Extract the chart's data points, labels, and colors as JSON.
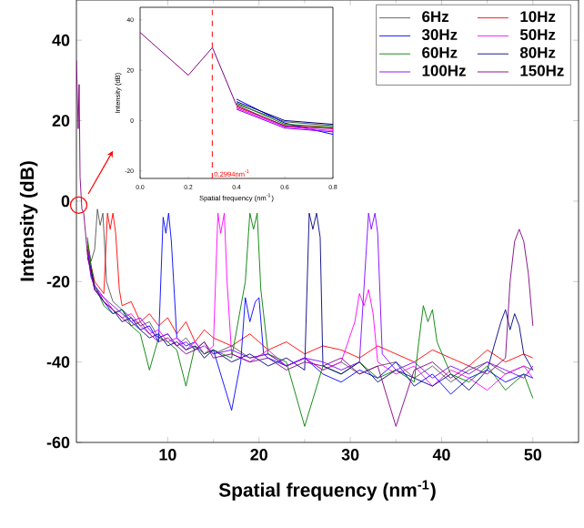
{
  "chart_data": [
    {
      "type": "line",
      "xlabel": "Spatial frequency (nm$^{-1}$)",
      "ylabel": "Intensity (dB)",
      "xlim": [
        0,
        55
      ],
      "ylim": [
        -60,
        50
      ],
      "xticks": [
        10,
        20,
        30,
        40,
        50
      ],
      "yticks": [
        -60,
        -40,
        -20,
        0,
        20,
        40
      ],
      "legend": "top right",
      "series": [
        {
          "name": "6Hz",
          "color": "#555555",
          "x": [
            1.2,
            1.6,
            2,
            2.3,
            2.6,
            2.9,
            3.3,
            4,
            5,
            6,
            7,
            8,
            9,
            10,
            11,
            12,
            13,
            14,
            15,
            17,
            19,
            21,
            23,
            25,
            27,
            29,
            31,
            33,
            35,
            37,
            39,
            41,
            43,
            45,
            47,
            49,
            50
          ],
          "values": [
            -10,
            -15,
            -12,
            -2,
            -6,
            -3,
            -20,
            -25,
            -27,
            -29,
            -31,
            -30,
            -34,
            -33,
            -36,
            -34,
            -37,
            -35,
            -38,
            -36,
            -39,
            -38,
            -41,
            -39,
            -42,
            -40,
            -43,
            -41,
            -40,
            -44,
            -41,
            -45,
            -42,
            -40,
            -43,
            -41,
            -42
          ]
        },
        {
          "name": "10Hz",
          "color": "#ff0000",
          "x": [
            1.2,
            1.6,
            2,
            3,
            3.4,
            3.7,
            4.0,
            4.3,
            4.7,
            5,
            6,
            7,
            8,
            9,
            10,
            11,
            12,
            13,
            14,
            15,
            17,
            19,
            21,
            23,
            25,
            27,
            29,
            31,
            33,
            35,
            37,
            39,
            41,
            43,
            45,
            47,
            49,
            50
          ],
          "values": [
            -11,
            -16,
            -20,
            -23,
            -3,
            -7,
            -3,
            -8,
            -22,
            -26,
            -25,
            -30,
            -28,
            -31,
            -29,
            -33,
            -30,
            -35,
            -32,
            -34,
            -36,
            -33,
            -37,
            -35,
            -38,
            -36,
            -37,
            -39,
            -36,
            -38,
            -40,
            -37,
            -39,
            -41,
            -37,
            -40,
            -38,
            -39
          ]
        },
        {
          "name": "30Hz",
          "color": "#0000ff",
          "x": [
            1.2,
            1.6,
            2,
            3,
            4,
            5,
            6,
            7,
            8,
            9,
            9.5,
            9.8,
            10.1,
            10.4,
            11,
            12,
            13,
            14,
            15,
            17,
            18,
            18.5,
            19,
            19.6,
            20,
            20.5,
            21,
            23,
            25,
            27,
            29,
            31,
            33,
            35,
            37,
            39,
            41,
            43,
            45,
            47,
            49,
            50
          ],
          "values": [
            -12,
            -17,
            -21,
            -25,
            -28,
            -27,
            -30,
            -32,
            -31,
            -35,
            -4,
            -8,
            -3,
            -10,
            -34,
            -36,
            -35,
            -38,
            -37,
            -52,
            -40,
            -24,
            -30,
            -25,
            -24,
            -38,
            -39,
            -41,
            -39,
            -43,
            -45,
            -42,
            -44,
            -40,
            -46,
            -43,
            -48,
            -44,
            -42,
            -45,
            -43,
            -44
          ]
        },
        {
          "name": "50Hz",
          "color": "#ff00ff",
          "x": [
            1.2,
            1.6,
            2,
            3,
            4,
            5,
            6,
            7,
            8,
            9,
            10,
            11,
            12,
            13,
            14,
            15,
            15.5,
            15.8,
            16.2,
            16.5,
            17,
            19,
            21,
            23,
            25,
            27,
            29,
            30.5,
            31,
            31.5,
            32,
            32.5,
            33,
            35,
            37,
            39,
            41,
            43,
            45,
            47,
            49,
            50
          ],
          "values": [
            -13,
            -18,
            -22,
            -24,
            -27,
            -29,
            -28,
            -31,
            -33,
            -32,
            -35,
            -34,
            -37,
            -35,
            -38,
            -36,
            -3,
            -8,
            -3,
            -20,
            -38,
            -40,
            -37,
            -41,
            -39,
            -42,
            -40,
            -30,
            -23,
            -26,
            -22,
            -28,
            -40,
            -43,
            -41,
            -46,
            -42,
            -44,
            -47,
            -43,
            -41,
            -44
          ]
        },
        {
          "name": "60Hz",
          "color": "#008000",
          "x": [
            1.2,
            1.6,
            2,
            3,
            4,
            5,
            6,
            7,
            8,
            9,
            10,
            11,
            12,
            13,
            14,
            15,
            17,
            18.5,
            19,
            19.4,
            19.8,
            20.2,
            21,
            23,
            25,
            27,
            29,
            31,
            33,
            35,
            37,
            37.5,
            38,
            38.5,
            39,
            39.5,
            41,
            43,
            45,
            47,
            49,
            50
          ],
          "values": [
            -9,
            -16,
            -21,
            -26,
            -28,
            -27,
            -31,
            -33,
            -42,
            -34,
            -35,
            -37,
            -46,
            -36,
            -38,
            -37,
            -39,
            -20,
            -3,
            -7,
            -3,
            -22,
            -38,
            -40,
            -56,
            -41,
            -43,
            -40,
            -44,
            -42,
            -45,
            -35,
            -26,
            -30,
            -27,
            -35,
            -43,
            -45,
            -41,
            -47,
            -43,
            -49
          ]
        },
        {
          "name": "80Hz",
          "color": "#000080",
          "x": [
            1.2,
            1.6,
            2,
            3,
            4,
            5,
            6,
            7,
            8,
            9,
            10,
            11,
            12,
            13,
            14,
            15,
            17,
            19,
            21,
            23,
            25,
            25.5,
            25.9,
            26.3,
            26.7,
            27,
            29,
            31,
            33,
            35,
            37,
            39,
            41,
            43,
            45,
            46.5,
            47,
            47.5,
            48,
            48.5,
            49,
            50
          ],
          "values": [
            -14,
            -17,
            -22,
            -25,
            -27,
            -30,
            -29,
            -32,
            -34,
            -33,
            -36,
            -35,
            -37,
            -36,
            -39,
            -37,
            -40,
            -38,
            -41,
            -39,
            -42,
            -3,
            -7,
            -3,
            -9,
            -41,
            -43,
            -40,
            -45,
            -42,
            -44,
            -46,
            -43,
            -47,
            -42,
            -30,
            -27,
            -32,
            -28,
            -31,
            -38,
            -42
          ]
        },
        {
          "name": "100Hz",
          "color": "#8000ff",
          "x": [
            1.2,
            1.6,
            2,
            3,
            4,
            5,
            6,
            7,
            8,
            9,
            10,
            11,
            12,
            13,
            14,
            15,
            17,
            19,
            21,
            23,
            25,
            27,
            29,
            31,
            32,
            32.3,
            32.7,
            33,
            33.5,
            35,
            37,
            39,
            41,
            43,
            45,
            47,
            49,
            50
          ],
          "values": [
            -12,
            -19,
            -21,
            -24,
            -26,
            -28,
            -30,
            -29,
            -32,
            -34,
            -33,
            -36,
            -35,
            -37,
            -36,
            -38,
            -37,
            -39,
            -38,
            -41,
            -39,
            -40,
            -42,
            -40,
            -3,
            -7,
            -3,
            -8,
            -38,
            -42,
            -40,
            -44,
            -41,
            -43,
            -40,
            -42,
            -44,
            -41
          ]
        },
        {
          "name": "150Hz",
          "color": "#800080",
          "x": [
            0,
            0.2,
            0.3,
            0.4,
            0.6,
            0.8,
            1.2,
            1.6,
            2,
            3,
            4,
            5,
            6,
            7,
            8,
            9,
            10,
            11,
            12,
            13,
            14,
            15,
            17,
            19,
            21,
            23,
            25,
            27,
            29,
            31,
            33,
            35,
            37,
            39,
            41,
            43,
            45,
            47,
            47.5,
            48,
            48.5,
            49,
            49.5,
            50
          ],
          "values": [
            35,
            18,
            29,
            6,
            -2,
            -3,
            -13,
            -18,
            -22,
            -25,
            -27,
            -29,
            -31,
            -30,
            -33,
            -35,
            -34,
            -36,
            -38,
            -37,
            -35,
            -39,
            -38,
            -40,
            -39,
            -42,
            -40,
            -41,
            -39,
            -43,
            -41,
            -56,
            -42,
            -40,
            -44,
            -41,
            -43,
            -39,
            -20,
            -10,
            -7,
            -10,
            -18,
            -31
          ]
        }
      ]
    },
    {
      "type": "line",
      "xlabel": "Spatial frequency (nm$^{-1}$)",
      "ylabel": "Intensity (dB)",
      "x": [
        0,
        0.2,
        0.3,
        0.4,
        0.6,
        0.8
      ],
      "xlim": [
        0,
        0.8
      ],
      "ylim": [
        -23,
        45
      ],
      "xticks": [
        {
          "value": 0,
          "label": "0.0"
        },
        {
          "value": 0.2,
          "label": "0.2"
        },
        {
          "value": 0.4,
          "label": "0.4"
        },
        {
          "value": 0.6,
          "label": "0.6"
        },
        {
          "value": 0.8,
          "label": "0.8"
        }
      ],
      "yticks": [
        -20,
        0,
        20,
        40
      ],
      "ref_lines": [
        {
          "axis": "x",
          "value": 0.2994,
          "label": "0.2994nm$^{-1}$",
          "color": "#ff0000",
          "line_style": "dashed"
        }
      ],
      "series": [
        {
          "color": "#555555",
          "values": [
            null,
            null,
            null,
            6.5,
            -0.5,
            -2
          ]
        },
        {
          "color": "#ff0000",
          "values": [
            null,
            null,
            null,
            5.5,
            -2,
            -3
          ]
        },
        {
          "color": "#0000ff",
          "values": [
            null,
            null,
            null,
            8.5,
            -1,
            -5.5
          ]
        },
        {
          "color": "#ff00ff",
          "values": [
            null,
            null,
            null,
            5,
            -2.5,
            -4
          ]
        },
        {
          "color": "#008000",
          "values": [
            null,
            null,
            null,
            7,
            -1.5,
            -2.5
          ]
        },
        {
          "color": "#000080",
          "values": [
            null,
            null,
            null,
            7.5,
            0,
            -1.5
          ]
        },
        {
          "color": "#8000ff",
          "values": [
            null,
            null,
            null,
            4.5,
            -3,
            -4.5
          ]
        },
        {
          "color": "#800080",
          "values": [
            35,
            18,
            29,
            6,
            -2.2,
            -3.2
          ]
        }
      ]
    }
  ]
}
